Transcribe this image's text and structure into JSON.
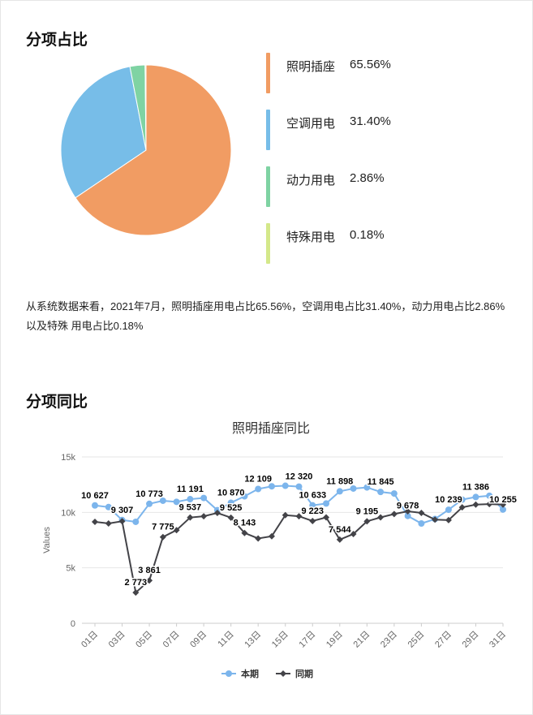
{
  "sections": {
    "share_title": "分项占比",
    "yoy_title": "分项同比"
  },
  "pie": {
    "items": [
      {
        "name": "照明插座",
        "pct": "65.56%",
        "value": 65.56,
        "color": "#f19c63"
      },
      {
        "name": "空调用电",
        "pct": "31.40%",
        "value": 31.4,
        "color": "#77bde8"
      },
      {
        "name": "动力用电",
        "pct": "2.86%",
        "value": 2.86,
        "color": "#7fd3a3"
      },
      {
        "name": "特殊用电",
        "pct": "0.18%",
        "value": 0.18,
        "color": "#d4e88a"
      }
    ]
  },
  "summary": "从系统数据来看，2021年7月，照明插座用电占比65.56%，空调用电占比31.40%，动力用电占比2.86%以及特殊 用电占比0.18%",
  "chart_data": {
    "type": "line",
    "title": "照明插座同比",
    "ylabel": "Values",
    "ylim": [
      0,
      15000
    ],
    "yticks": [
      "0",
      "5k",
      "10k",
      "15k"
    ],
    "ytick_values": [
      0,
      5000,
      10000,
      15000
    ],
    "categories": [
      "01日",
      "02日",
      "03日",
      "04日",
      "05日",
      "06日",
      "07日",
      "08日",
      "09日",
      "10日",
      "11日",
      "12日",
      "13日",
      "14日",
      "15日",
      "16日",
      "17日",
      "18日",
      "19日",
      "20日",
      "21日",
      "22日",
      "23日",
      "24日",
      "25日",
      "26日",
      "27日",
      "28日",
      "29日",
      "30日",
      "31日"
    ],
    "series": [
      {
        "name": "本期",
        "color": "#7cb5ec",
        "marker": "circle",
        "values": [
          10627,
          10480,
          9307,
          9150,
          10773,
          11050,
          10950,
          11191,
          11300,
          10200,
          10870,
          11450,
          12109,
          12350,
          12400,
          12320,
          10633,
          10800,
          11898,
          12150,
          12250,
          11845,
          11700,
          9678,
          9000,
          9400,
          10239,
          11150,
          11386,
          11500,
          10255
        ],
        "labels": {
          "0": "10 627",
          "2": "9 307",
          "4": "10 773",
          "7": "11 191",
          "10": "10 870",
          "12": "12 109",
          "15": "12 320",
          "16": "10 633",
          "18": "11 898",
          "21": "11 845",
          "23": "9 678",
          "26": "10 239",
          "28": "11 386",
          "30": "10 255"
        }
      },
      {
        "name": "同期",
        "color": "#434348",
        "marker": "diamond",
        "values": [
          9150,
          9000,
          9200,
          2773,
          3861,
          7775,
          8400,
          9537,
          9650,
          9950,
          9525,
          8143,
          7650,
          7850,
          9750,
          9650,
          9223,
          9550,
          7544,
          8050,
          9195,
          9550,
          9850,
          10100,
          9950,
          9350,
          9300,
          10450,
          10700,
          10750,
          10700
        ],
        "labels": {
          "3": "2 773",
          "4": "3 861",
          "5": "7 775",
          "7": "9 537",
          "10": "9 525",
          "11": "8 143",
          "16": "9 223",
          "18": "7 544",
          "20": "9 195"
        }
      }
    ],
    "xtick_labels": [
      "01日",
      "03日",
      "05日",
      "07日",
      "09日",
      "11日",
      "13日",
      "15日",
      "17日",
      "19日",
      "21日",
      "23日",
      "25日",
      "27日",
      "29日",
      "31日"
    ],
    "legend": {
      "position": "bottom-center",
      "items": [
        "本期",
        "同期"
      ]
    },
    "grid": true
  }
}
